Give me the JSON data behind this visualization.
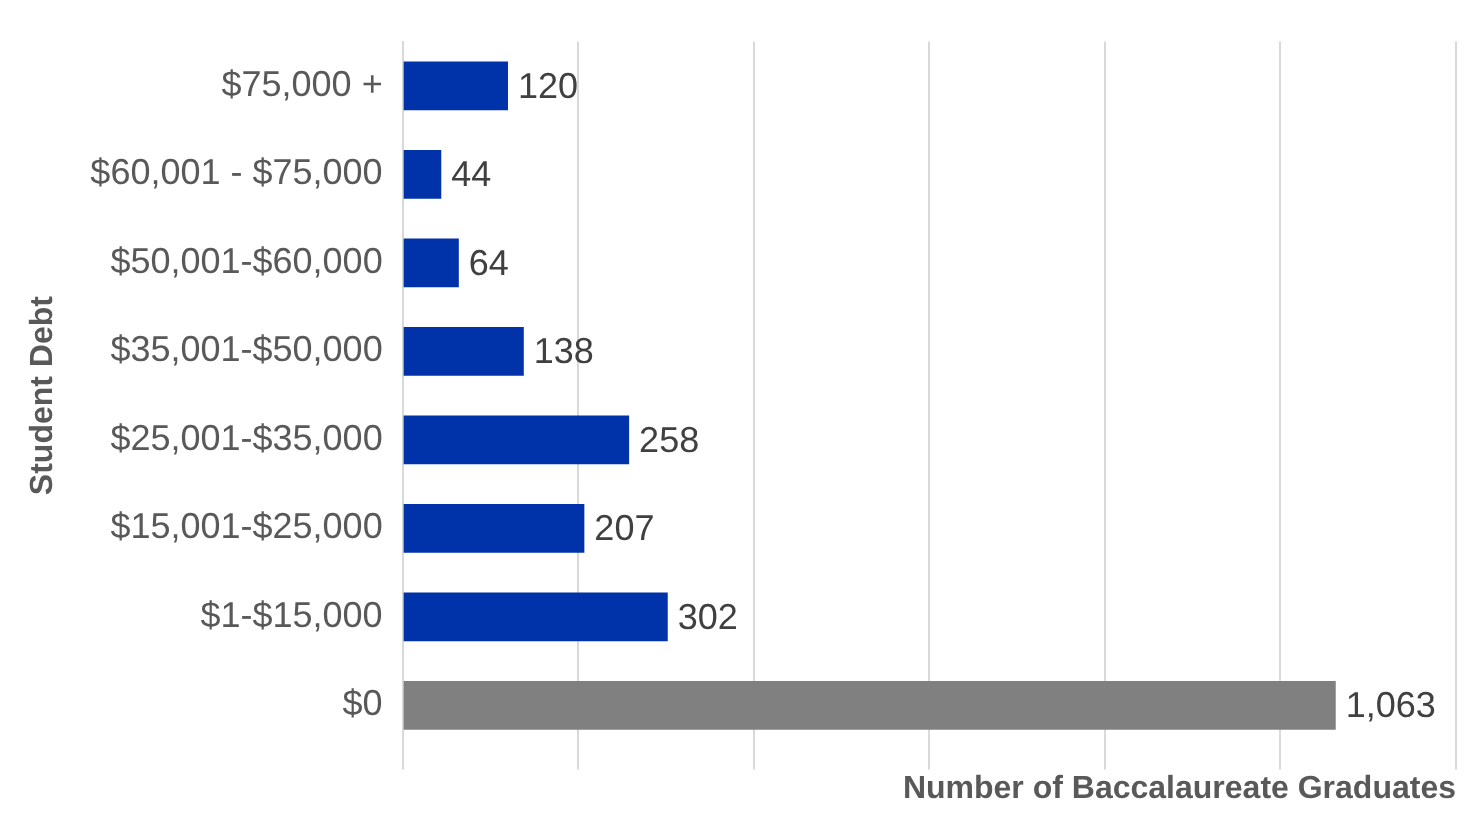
{
  "chart_data": {
    "type": "bar",
    "orientation": "horizontal",
    "xlabel": "Number of Baccalaureate Graduates",
    "ylabel": "Student Debt",
    "categories": [
      "$75,000 +",
      "$60,001 - $75,000",
      "$50,001-$60,000",
      "$35,001-$50,000",
      "$25,001-$35,000",
      "$15,001-$25,000",
      "$1-$15,000",
      "$0"
    ],
    "values": [
      120,
      44,
      64,
      138,
      258,
      207,
      302,
      1063
    ],
    "colors": [
      "#0033aa",
      "#0033aa",
      "#0033aa",
      "#0033aa",
      "#0033aa",
      "#0033aa",
      "#0033aa",
      "#808080"
    ],
    "xlim": [
      0,
      1200
    ],
    "xticks": [
      {
        "value": 0,
        "label": null
      },
      {
        "value": 200,
        "label": null
      },
      {
        "value": 400,
        "label": null
      },
      {
        "value": 600,
        "label": null
      },
      {
        "value": 800,
        "label": null
      },
      {
        "value": 1000,
        "label": null
      },
      {
        "value": 1200,
        "label": null
      }
    ],
    "value_labels": [
      "120",
      "44",
      "64",
      "138",
      "258",
      "207",
      "302",
      "1,063"
    ],
    "tick_labels": "y",
    "grid": "x",
    "legend": false
  }
}
